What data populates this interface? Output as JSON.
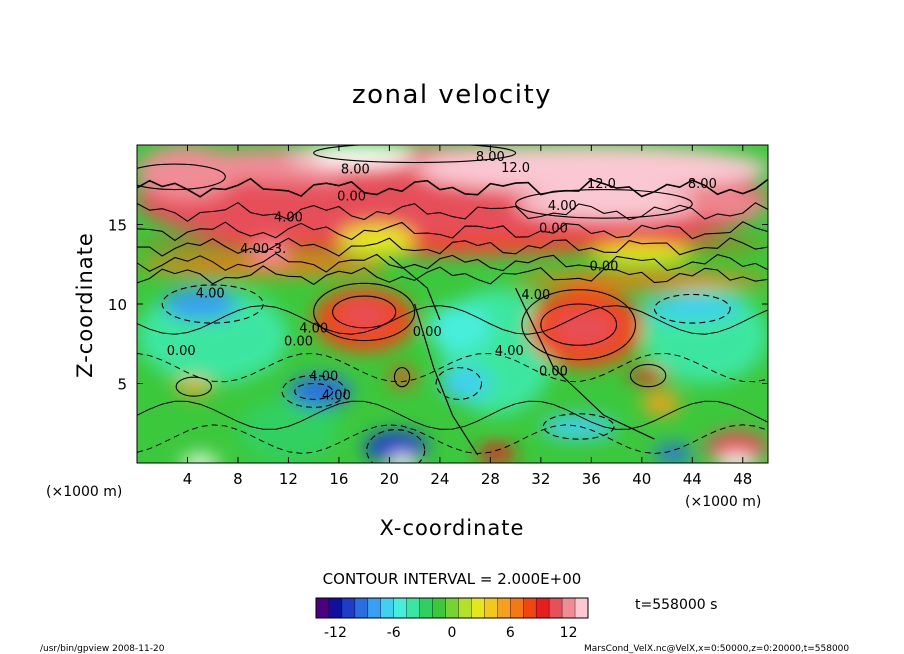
{
  "chart_data": {
    "type": "heatmap",
    "title": "zonal velocity",
    "xlabel": "X-coordinate",
    "ylabel": "Z-coordinate",
    "x_unit": "(×1000 m)",
    "y_unit": "(×1000 m)",
    "xlim": [
      0,
      50
    ],
    "ylim": [
      0,
      20
    ],
    "x_ticks": [
      4,
      8,
      12,
      16,
      20,
      24,
      28,
      32,
      36,
      40,
      44,
      48
    ],
    "y_ticks": [
      5,
      10,
      15
    ],
    "contour_interval": "CONTOUR INTERVAL = 2.000E+00",
    "contour_labels": [
      {
        "text": "8.00",
        "x": 17.3,
        "y": 18.2
      },
      {
        "text": "8.00",
        "x": 28.0,
        "y": 19.0
      },
      {
        "text": "12.0",
        "x": 30.0,
        "y": 18.3
      },
      {
        "text": "12.0",
        "x": 36.8,
        "y": 17.3
      },
      {
        "text": "8.00",
        "x": 44.8,
        "y": 17.3
      },
      {
        "text": "0.00",
        "x": 17.0,
        "y": 16.5
      },
      {
        "text": "4.00",
        "x": 12.0,
        "y": 15.2
      },
      {
        "text": "4.00",
        "x": 33.7,
        "y": 15.9
      },
      {
        "text": "0.00",
        "x": 33.0,
        "y": 14.5
      },
      {
        "text": "4.00-3.",
        "x": 10.0,
        "y": 13.2
      },
      {
        "text": "0.00",
        "x": 37.0,
        "y": 12.1
      },
      {
        "text": "4.00",
        "x": 5.8,
        "y": 10.4
      },
      {
        "text": "4.00",
        "x": 31.6,
        "y": 10.3
      },
      {
        "text": "4.00",
        "x": 14.0,
        "y": 8.2
      },
      {
        "text": "0.00",
        "x": 12.8,
        "y": 7.4
      },
      {
        "text": "0.00",
        "x": 23.0,
        "y": 8.0
      },
      {
        "text": "4.00",
        "x": 29.5,
        "y": 6.8
      },
      {
        "text": "0.00",
        "x": 33.0,
        "y": 5.5
      },
      {
        "text": "0.00",
        "x": 3.5,
        "y": 6.8
      },
      {
        "text": "4.00",
        "x": 14.8,
        "y": 5.2
      },
      {
        "text": "4.00",
        "x": 15.8,
        "y": 4.0
      }
    ],
    "colorbar": {
      "min": -14,
      "max": 14,
      "ticks": [
        -12,
        -6,
        0,
        6,
        12
      ],
      "colors": [
        "#4b0082",
        "#1010a0",
        "#1e3cc8",
        "#2a6ee0",
        "#37a0f0",
        "#40d0f0",
        "#46eedc",
        "#3ce6a0",
        "#30d060",
        "#3cc83c",
        "#78d232",
        "#b4e028",
        "#e6e61e",
        "#f0c81e",
        "#f5a01e",
        "#f57814",
        "#f04614",
        "#e61e1e",
        "#e6505a",
        "#f08c96",
        "#fac8d2"
      ]
    },
    "time_label": "t=558000 s"
  },
  "footer": {
    "program": "/usr/bin/gpview  2008-11-20",
    "source": "MarsCond_VelX.nc@VelX,x=0:50000,z=0:20000,t=558000"
  }
}
